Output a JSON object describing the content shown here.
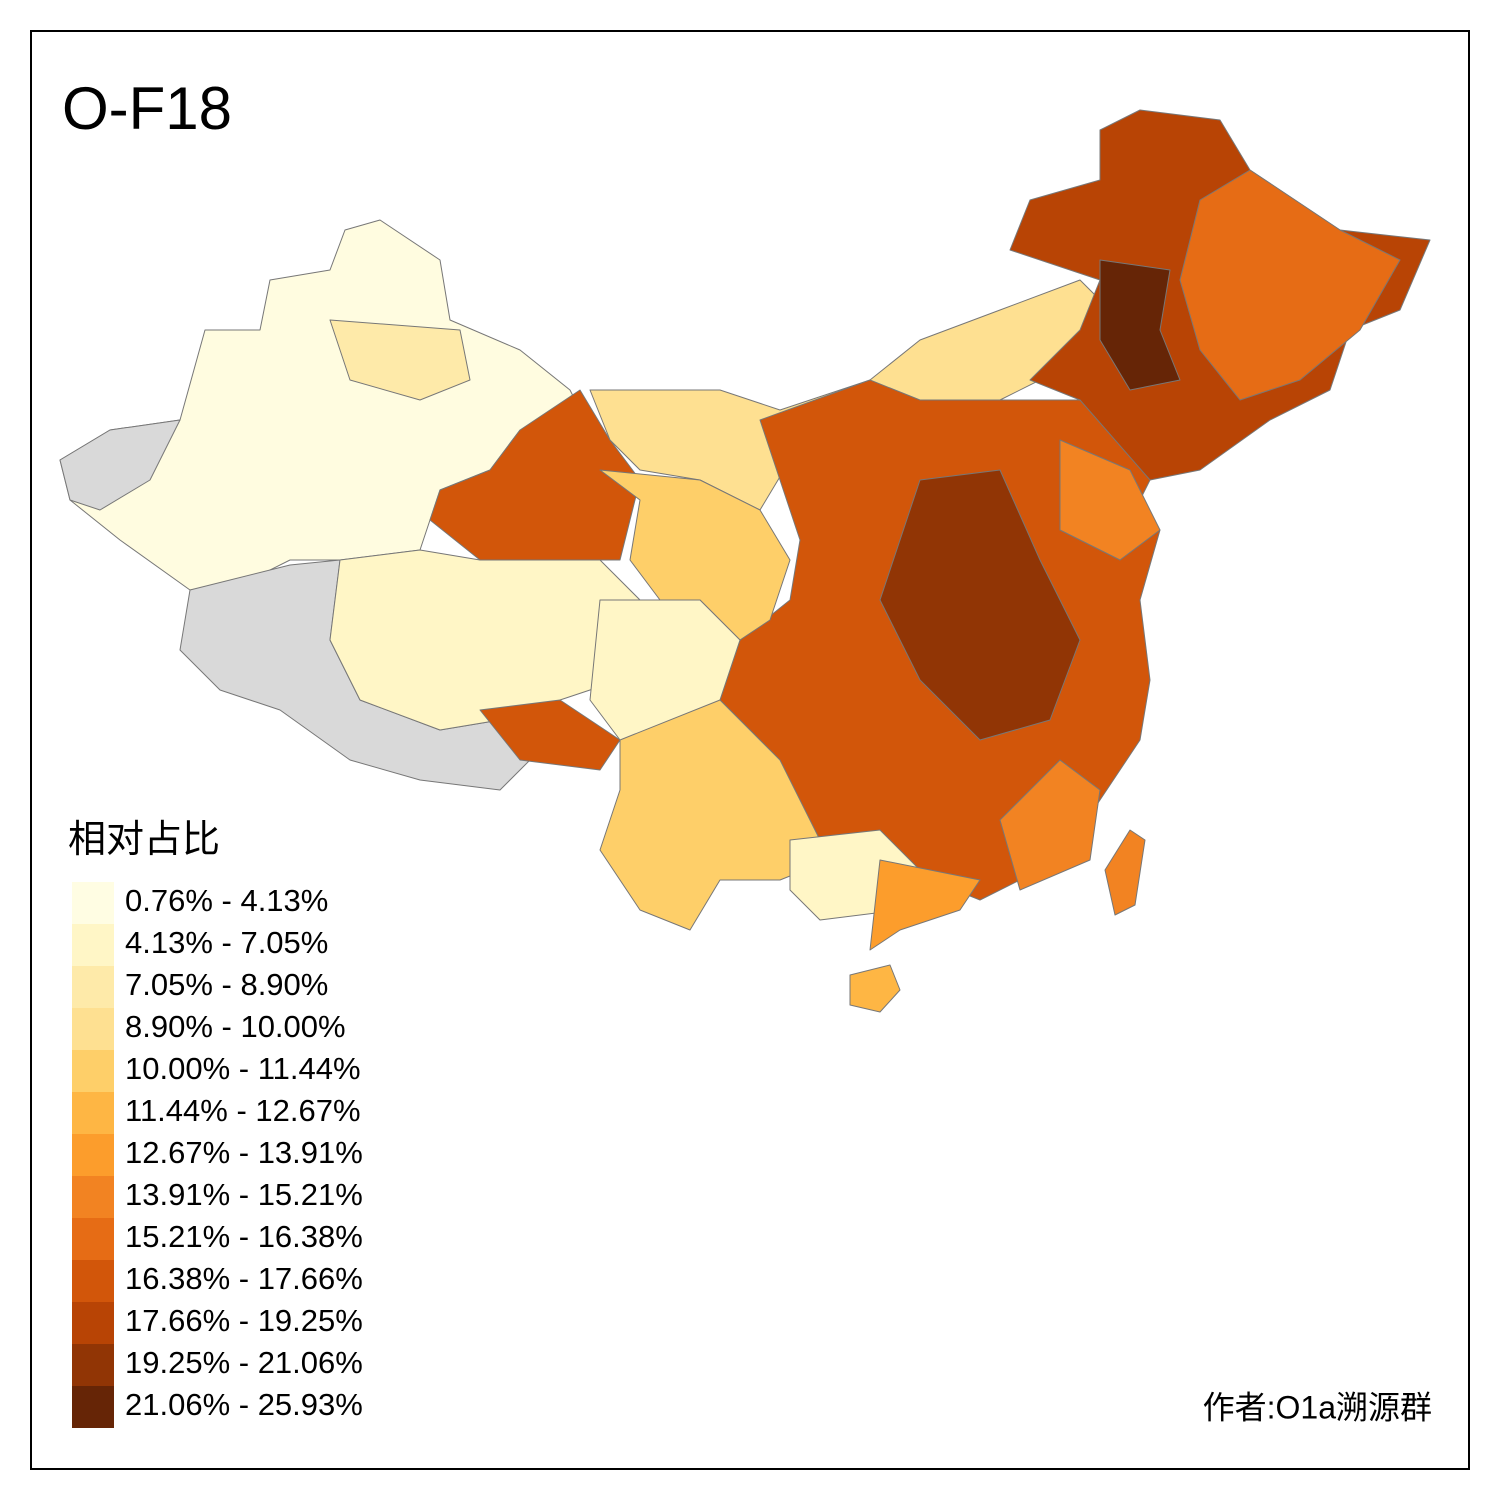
{
  "header": {
    "title": "O-F18"
  },
  "legend": {
    "title": "相对占比",
    "items": [
      {
        "label": "0.76% - 4.13%",
        "color": "#fffde3"
      },
      {
        "label": "4.13% - 7.05%",
        "color": "#fff6c6"
      },
      {
        "label": "7.05% - 8.90%",
        "color": "#feeaa9"
      },
      {
        "label": "8.90% - 10.00%",
        "color": "#fee091"
      },
      {
        "label": "10.00% - 11.44%",
        "color": "#fecf69"
      },
      {
        "label": "11.44% - 12.67%",
        "color": "#feb644"
      },
      {
        "label": "12.67% - 13.91%",
        "color": "#fc9d2c"
      },
      {
        "label": "13.91% - 15.21%",
        "color": "#f28322"
      },
      {
        "label": "15.21% - 16.38%",
        "color": "#e66c15"
      },
      {
        "label": "16.38% - 17.66%",
        "color": "#d2560a"
      },
      {
        "label": "17.66% - 19.25%",
        "color": "#b84405"
      },
      {
        "label": "19.25% - 21.06%",
        "color": "#913505"
      },
      {
        "label": "21.06% - 25.93%",
        "color": "#662506"
      }
    ]
  },
  "footer": {
    "author": "作者:O1a溯源群"
  }
}
